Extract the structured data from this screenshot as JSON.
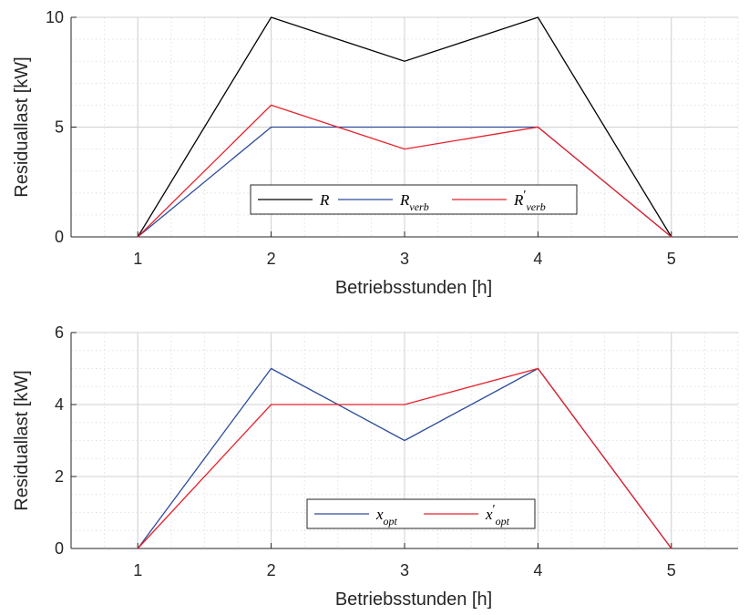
{
  "chart_data": [
    {
      "type": "line",
      "x": [
        1,
        2,
        3,
        4,
        5
      ],
      "xlabel": "Betriebsstunden [h]",
      "ylabel": "Residuallast [kW]",
      "xlim": [
        0.5,
        5.5
      ],
      "ylim": [
        0,
        10
      ],
      "x_ticks": [
        "1",
        "2",
        "3",
        "4",
        "5"
      ],
      "y_ticks": [
        "0",
        "5",
        "10"
      ],
      "grid": "major and minor, dotted",
      "legend_position": "lower center",
      "series": [
        {
          "name": "R",
          "name_sub": "",
          "prime": false,
          "color": "#000000",
          "values": [
            0,
            10,
            8,
            10,
            0
          ]
        },
        {
          "name": "R",
          "name_sub": "verb",
          "prime": false,
          "color": "#2b4b9b",
          "values": [
            0,
            5,
            5,
            5,
            0
          ]
        },
        {
          "name": "R",
          "name_sub": "verb",
          "prime": true,
          "color": "#e8202a",
          "values": [
            0,
            6,
            4,
            5,
            0
          ]
        }
      ]
    },
    {
      "type": "line",
      "x": [
        1,
        2,
        3,
        4,
        5
      ],
      "xlabel": "Betriebsstunden [h]",
      "ylabel": "Residuallast [kW]",
      "xlim": [
        0.5,
        5.5
      ],
      "ylim": [
        0,
        6
      ],
      "x_ticks": [
        "1",
        "2",
        "3",
        "4",
        "5"
      ],
      "y_ticks": [
        "0",
        "2",
        "4",
        "6"
      ],
      "grid": "major and minor, dotted",
      "legend_position": "lower center",
      "series": [
        {
          "name": "x",
          "name_sub": "opt",
          "prime": false,
          "color": "#2b4b9b",
          "values": [
            0,
            5,
            3,
            5,
            0
          ]
        },
        {
          "name": "x",
          "name_sub": "opt",
          "prime": true,
          "color": "#e8202a",
          "values": [
            0,
            4,
            4,
            5,
            0
          ]
        }
      ]
    }
  ]
}
